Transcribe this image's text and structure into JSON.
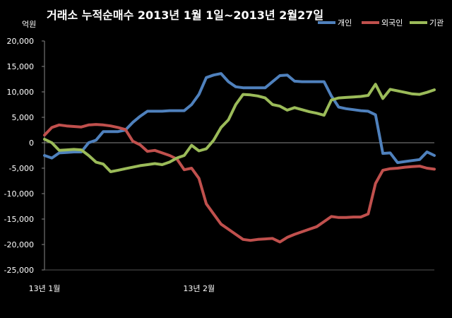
{
  "chart_data": {
    "type": "line",
    "title": "거래소  누적순매수 2013년 1월 1일~2013년 2월27일",
    "unit_label": "억원",
    "xlabel": "",
    "ylabel": "",
    "ylim": [
      -25000,
      20000
    ],
    "y_ticks": [
      20000,
      15000,
      10000,
      5000,
      0,
      -5000,
      -10000,
      -15000,
      -20000,
      -25000
    ],
    "y_tick_labels": [
      "20,000",
      "15,000",
      "10,000",
      "5,000",
      "0",
      "-5,000",
      "-10,000",
      "-15,000",
      "-20,000",
      "-25,000"
    ],
    "x_tick_labels": [
      {
        "label": "13년 1월",
        "index": 0
      },
      {
        "label": "13년 2월",
        "index": 21
      }
    ],
    "grid": false,
    "legend_position": "top-right",
    "x_count": 40,
    "series": [
      {
        "name": "개인",
        "color": "#4f81bd",
        "values": [
          -2500,
          -3000,
          -2000,
          -1900,
          -1800,
          -1800,
          0,
          500,
          2200,
          2200,
          2200,
          2500,
          4000,
          5200,
          6200,
          6200,
          6200,
          6300,
          6300,
          6300,
          7500,
          9500,
          12800,
          13300,
          13600,
          12000,
          11000,
          10800,
          10800,
          10800,
          10800,
          12000,
          13200,
          13300,
          12100,
          12000,
          12000,
          12000,
          12000,
          9200
        ]
      },
      {
        "name": "외국인",
        "color": "#c0504d",
        "values": [
          1500,
          3000,
          3500,
          3300,
          3200,
          3100,
          3500,
          3600,
          3500,
          3300,
          3000,
          2600,
          300,
          -400,
          -1700,
          -1500,
          -2000,
          -2500,
          -3200,
          -5300,
          -5000,
          -7000,
          -12000,
          -14000,
          -16000,
          -17000,
          -18000,
          -19000,
          -19200,
          -19000,
          -18900,
          -18800,
          -19500,
          -18600,
          -18000,
          -17500,
          -17000,
          -16500,
          -15500,
          -14500
        ]
      },
      {
        "name": "기관",
        "color": "#9bbb59",
        "values": [
          700,
          0,
          -1500,
          -1400,
          -1300,
          -1400,
          -2500,
          -3800,
          -4200,
          -5700,
          -5400,
          -5100,
          -4800,
          -4500,
          -4300,
          -4100,
          -4300,
          -3800,
          -3000,
          -2500,
          -500,
          -1600,
          -1200,
          500,
          3000,
          4500,
          7500,
          9500,
          9400,
          9200,
          8800,
          7500,
          7200,
          6400,
          6900,
          6500,
          6100,
          5800,
          5400,
          8400
        ]
      }
    ],
    "series_tail": [
      {
        "name": "개인",
        "values": [
          7000,
          6700,
          6500,
          6300,
          6200,
          5500,
          -2100,
          -2000,
          -3900,
          -3700,
          -3500,
          -3300,
          -1800,
          -2500
        ]
      },
      {
        "name": "외국인",
        "values": [
          -14700,
          -14700,
          -14600,
          -14600,
          -14000,
          -8000,
          -5400,
          -5100,
          -5000,
          -4800,
          -4700,
          -4600,
          -5000,
          -5200
        ]
      },
      {
        "name": "기관",
        "values": [
          8800,
          8900,
          9000,
          9100,
          9300,
          11500,
          8700,
          10500,
          10200,
          9900,
          9600,
          9500,
          9900,
          10400
        ]
      }
    ]
  }
}
